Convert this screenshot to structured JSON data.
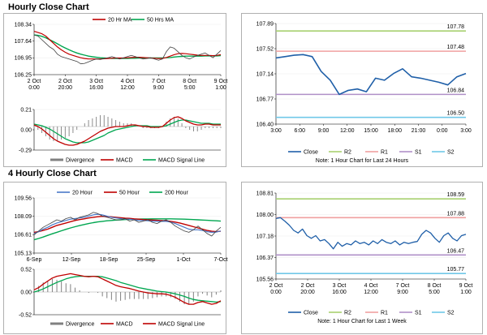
{
  "colors": {
    "ma20": "#c00000",
    "ma50": "#00a650",
    "close_price": "#404040",
    "divergence": "#808080",
    "macd": "#c00000",
    "signal": "#00a650",
    "close_line": "#1f5fa8",
    "r2": "#a8d070",
    "r1": "#f0a0a0",
    "s1": "#b090c8",
    "s2": "#70c8e8",
    "h20": "#4a78c8",
    "h50": "#c00000",
    "h200": "#00a650"
  },
  "sections": {
    "hourly_title": "Hourly Close Chart",
    "four_hourly_title": "4 Hourly Close Chart"
  },
  "chart_data": [
    {
      "id": "hourly_ma",
      "type": "line",
      "legend": [
        "20 Hr MA",
        "50 Hrs MA"
      ],
      "y_ticks": [
        "108.34",
        "107.64",
        "106.95",
        "106.25"
      ],
      "ylim": [
        106.25,
        108.34
      ],
      "x_ticks": [
        [
          "2 Oct",
          "0:00"
        ],
        [
          "2 Oct",
          "20:00"
        ],
        [
          "3 Oct",
          "16:00"
        ],
        [
          "4 Oct",
          "12:00"
        ],
        [
          "7 Oct",
          "9:00"
        ],
        [
          "8 Oct",
          "5:00"
        ],
        [
          "9 Oct",
          "1:00"
        ]
      ],
      "series": [
        {
          "key": "close",
          "values": [
            107.9,
            107.85,
            107.7,
            107.55,
            107.4,
            107.3,
            107.1,
            107.0,
            106.95,
            106.9,
            106.85,
            106.8,
            106.7,
            106.72,
            106.78,
            106.85,
            106.9,
            106.88,
            106.92,
            106.95,
            107.0,
            106.95,
            106.9,
            106.95,
            107.0,
            107.05,
            107.0,
            106.95,
            106.9,
            106.92,
            106.95,
            106.9,
            106.85,
            106.9,
            107.2,
            107.4,
            107.35,
            107.2,
            107.05,
            106.95,
            106.9,
            106.98,
            107.05,
            107.1,
            107.15,
            107.05,
            106.95,
            107.1,
            107.25
          ]
        },
        {
          "key": "ma20",
          "values": [
            108.05,
            108.0,
            107.95,
            107.85,
            107.7,
            107.55,
            107.4,
            107.28,
            107.18,
            107.1,
            107.05,
            107.0,
            106.95,
            106.92,
            106.9,
            106.9,
            106.9,
            106.9,
            106.91,
            106.92,
            106.93,
            106.94,
            106.94,
            106.94,
            106.95,
            106.96,
            106.97,
            106.97,
            106.96,
            106.95,
            106.94,
            106.93,
            106.92,
            106.92,
            106.96,
            107.02,
            107.08,
            107.12,
            107.13,
            107.12,
            107.1,
            107.08,
            107.06,
            107.05,
            107.05,
            107.05,
            107.04,
            107.05,
            107.08
          ]
        },
        {
          "key": "ma50",
          "values": [
            107.9,
            107.88,
            107.84,
            107.78,
            107.7,
            107.62,
            107.53,
            107.44,
            107.36,
            107.28,
            107.21,
            107.15,
            107.1,
            107.06,
            107.02,
            106.99,
            106.97,
            106.95,
            106.94,
            106.93,
            106.92,
            106.92,
            106.92,
            106.92,
            106.92,
            106.93,
            106.93,
            106.94,
            106.94,
            106.94,
            106.94,
            106.94,
            106.94,
            106.94,
            106.95,
            106.96,
            106.98,
            107.0,
            107.01,
            107.02,
            107.02,
            107.02,
            107.02,
            107.02,
            107.03,
            107.03,
            107.03,
            107.03,
            107.04
          ]
        }
      ]
    },
    {
      "id": "hourly_macd",
      "type": "line",
      "legend": [
        "Divergence",
        "MACD",
        "MACD Signal Line"
      ],
      "y_ticks": [
        "0.21",
        "0.00",
        "-0.29"
      ],
      "ylim": [
        -0.29,
        0.21
      ],
      "series": [
        {
          "key": "macd",
          "values": [
            0.02,
            0.0,
            -0.03,
            -0.07,
            -0.11,
            -0.15,
            -0.18,
            -0.2,
            -0.22,
            -0.23,
            -0.23,
            -0.22,
            -0.2,
            -0.18,
            -0.15,
            -0.12,
            -0.09,
            -0.06,
            -0.04,
            -0.02,
            -0.01,
            0.0,
            0.0,
            0.0,
            0.01,
            0.02,
            0.02,
            0.01,
            0.0,
            0.0,
            -0.01,
            -0.01,
            -0.01,
            0.0,
            0.04,
            0.08,
            0.11,
            0.12,
            0.1,
            0.07,
            0.05,
            0.03,
            0.02,
            0.02,
            0.03,
            0.03,
            0.02,
            0.02,
            0.02
          ]
        },
        {
          "key": "signal",
          "values": [
            0.03,
            0.02,
            0.01,
            -0.01,
            -0.03,
            -0.06,
            -0.09,
            -0.12,
            -0.15,
            -0.17,
            -0.19,
            -0.2,
            -0.2,
            -0.2,
            -0.19,
            -0.17,
            -0.15,
            -0.13,
            -0.11,
            -0.08,
            -0.06,
            -0.04,
            -0.03,
            -0.02,
            -0.01,
            0.0,
            0.01,
            0.01,
            0.01,
            0.01,
            0.0,
            0.0,
            0.0,
            0.0,
            0.01,
            0.03,
            0.05,
            0.07,
            0.08,
            0.08,
            0.07,
            0.06,
            0.05,
            0.04,
            0.04,
            0.04,
            0.03,
            0.03,
            0.03
          ]
        }
      ]
    },
    {
      "id": "hourly_levels",
      "type": "line",
      "y_ticks": [
        "107.89",
        "107.52",
        "107.14",
        "106.77",
        "106.40"
      ],
      "ylim": [
        106.4,
        107.89
      ],
      "x_ticks": [
        "3:00",
        "6:00",
        "9:00",
        "12:00",
        "15:00",
        "18:00",
        "21:00",
        "0:00",
        "3:00"
      ],
      "levels": [
        {
          "key": "R2",
          "value": 107.78,
          "label": "107.78"
        },
        {
          "key": "R1",
          "value": 107.48,
          "label": "107.48"
        },
        {
          "key": "S1",
          "value": 106.84,
          "label": "106.84"
        },
        {
          "key": "S2",
          "value": 106.5,
          "label": "106.50"
        }
      ],
      "close": [
        107.38,
        107.4,
        107.42,
        107.43,
        107.4,
        107.18,
        107.05,
        106.84,
        106.9,
        106.92,
        106.88,
        107.08,
        107.05,
        107.15,
        107.22,
        107.1,
        107.08,
        107.05,
        107.02,
        106.98,
        107.1,
        107.15
      ],
      "legend": [
        "Close",
        "R2",
        "R1",
        "S1",
        "S2"
      ],
      "note": "Note: 1 Hour Chart for Last 24 Hours"
    },
    {
      "id": "four_hourly_ma",
      "type": "line",
      "legend": [
        "20 Hour",
        "50 Hour",
        "200 Hour"
      ],
      "y_ticks": [
        "109.56",
        "108.09",
        "106.61",
        "105.13"
      ],
      "ylim": [
        105.13,
        109.56
      ],
      "x_ticks": [
        "6-Sep",
        "12-Sep",
        "18-Sep",
        "25-Sep",
        "1-Oct",
        "7-Oct"
      ],
      "series": [
        {
          "key": "close",
          "values": [
            106.6,
            106.9,
            107.2,
            107.4,
            107.6,
            107.8,
            107.7,
            107.9,
            108.0,
            107.8,
            108.0,
            108.1,
            108.2,
            108.4,
            108.3,
            108.1,
            108.0,
            107.9,
            107.8,
            107.8,
            107.9,
            107.7,
            107.8,
            107.6,
            107.7,
            107.8,
            107.6,
            107.5,
            107.7,
            107.8,
            107.6,
            107.3,
            107.1,
            106.9,
            106.8,
            107.0,
            107.3,
            107.0,
            106.7,
            106.5,
            106.9,
            107.2
          ]
        },
        {
          "key": "h20",
          "values": [
            106.7,
            106.85,
            107.05,
            107.2,
            107.4,
            107.55,
            107.65,
            107.75,
            107.85,
            107.9,
            107.95,
            108.0,
            108.1,
            108.2,
            108.25,
            108.2,
            108.1,
            108.0,
            107.95,
            107.9,
            107.85,
            107.85,
            107.8,
            107.75,
            107.75,
            107.72,
            107.7,
            107.68,
            107.68,
            107.68,
            107.62,
            107.5,
            107.35,
            107.2,
            107.05,
            107.0,
            107.0,
            106.95,
            106.85,
            106.8,
            106.82,
            106.9
          ]
        },
        {
          "key": "h50",
          "values": [
            106.8,
            106.85,
            106.95,
            107.05,
            107.2,
            107.35,
            107.45,
            107.55,
            107.65,
            107.75,
            107.82,
            107.88,
            107.95,
            108.0,
            108.05,
            108.08,
            108.06,
            108.04,
            108.0,
            107.97,
            107.94,
            107.92,
            107.88,
            107.85,
            107.82,
            107.8,
            107.78,
            107.76,
            107.74,
            107.72,
            107.68,
            107.62,
            107.55,
            107.45,
            107.35,
            107.25,
            107.15,
            107.05,
            106.95,
            106.88,
            106.85,
            106.88
          ]
        },
        {
          "key": "h200",
          "values": [
            106.2,
            106.3,
            106.42,
            106.55,
            106.68,
            106.8,
            106.92,
            107.04,
            107.15,
            107.25,
            107.34,
            107.42,
            107.5,
            107.57,
            107.63,
            107.68,
            107.72,
            107.75,
            107.78,
            107.8,
            107.82,
            107.84,
            107.85,
            107.86,
            107.87,
            107.87,
            107.88,
            107.88,
            107.88,
            107.88,
            107.88,
            107.87,
            107.86,
            107.85,
            107.84,
            107.82,
            107.8,
            107.78,
            107.76,
            107.74,
            107.72,
            107.7
          ]
        }
      ]
    },
    {
      "id": "four_hourly_macd",
      "type": "line",
      "legend": [
        "Divergence",
        "MACD",
        "MACD Signal Line"
      ],
      "y_ticks": [
        "0.52",
        "0.00",
        "-0.52"
      ],
      "ylim": [
        -0.52,
        0.52
      ],
      "series": [
        {
          "key": "macd",
          "values": [
            0.05,
            0.1,
            0.18,
            0.25,
            0.32,
            0.36,
            0.38,
            0.4,
            0.42,
            0.4,
            0.38,
            0.36,
            0.35,
            0.36,
            0.35,
            0.3,
            0.25,
            0.2,
            0.15,
            0.12,
            0.1,
            0.08,
            0.05,
            0.02,
            0.0,
            -0.02,
            -0.03,
            -0.04,
            -0.04,
            -0.05,
            -0.08,
            -0.12,
            -0.18,
            -0.24,
            -0.28,
            -0.28,
            -0.24,
            -0.22,
            -0.25,
            -0.28,
            -0.26,
            -0.2
          ]
        },
        {
          "key": "signal",
          "values": [
            0.0,
            0.03,
            0.07,
            0.12,
            0.17,
            0.22,
            0.26,
            0.3,
            0.33,
            0.35,
            0.36,
            0.36,
            0.36,
            0.36,
            0.36,
            0.35,
            0.32,
            0.29,
            0.26,
            0.22,
            0.19,
            0.16,
            0.13,
            0.1,
            0.08,
            0.06,
            0.04,
            0.02,
            0.01,
            0.0,
            -0.02,
            -0.04,
            -0.07,
            -0.1,
            -0.14,
            -0.17,
            -0.19,
            -0.2,
            -0.21,
            -0.22,
            -0.23,
            -0.22
          ]
        }
      ]
    },
    {
      "id": "four_hourly_levels",
      "type": "line",
      "y_ticks": [
        "108.81",
        "108.00",
        "107.18",
        "106.37",
        "105.56"
      ],
      "ylim": [
        105.56,
        108.81
      ],
      "x_ticks": [
        [
          "2 Oct",
          "0:00"
        ],
        [
          "2 Oct",
          "20:00"
        ],
        [
          "3 Oct",
          "16:00"
        ],
        [
          "4 Oct",
          "12:00"
        ],
        [
          "7 Oct",
          "9:00"
        ],
        [
          "8 Oct",
          "5:00"
        ],
        [
          "9 Oct",
          "1:00"
        ]
      ],
      "levels": [
        {
          "key": "R2",
          "value": 108.59,
          "label": "108.59"
        },
        {
          "key": "R1",
          "value": 107.88,
          "label": "107.88"
        },
        {
          "key": "S1",
          "value": 106.47,
          "label": "106.47"
        },
        {
          "key": "S2",
          "value": 105.77,
          "label": "105.77"
        }
      ],
      "close": [
        107.85,
        107.88,
        107.75,
        107.6,
        107.4,
        107.3,
        107.45,
        107.2,
        107.1,
        107.2,
        107.0,
        107.05,
        106.9,
        106.7,
        106.95,
        106.8,
        106.9,
        106.85,
        107.0,
        106.9,
        106.95,
        106.85,
        107.0,
        106.9,
        107.05,
        106.95,
        106.9,
        107.0,
        106.85,
        106.95,
        106.9,
        106.95,
        106.98,
        107.25,
        107.4,
        107.3,
        107.1,
        106.95,
        107.2,
        107.3,
        107.1,
        107.0,
        107.2,
        107.25
      ],
      "legend": [
        "Close",
        "R2",
        "R1",
        "S1",
        "S2"
      ],
      "note": "Note: 1 Hour Chart for Last 1 Week"
    }
  ]
}
